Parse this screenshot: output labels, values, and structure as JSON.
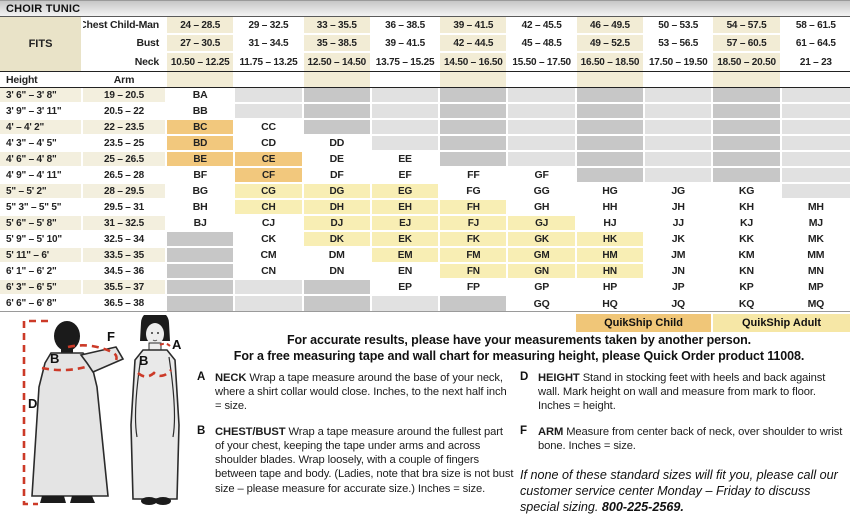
{
  "title": "CHOIR TUNIC",
  "colors": {
    "quikship_child": "#f0c678",
    "quikship_adult": "#f6e7a6",
    "highlight_child_cell": "#f2c87d",
    "highlight_adult_cell": "#f8eeb4",
    "cream_column": "#f2ecd5",
    "cream_row": "#f3efde",
    "empty_dark": "#c7c7c7",
    "empty_light": "#e1e1e1",
    "measure_red": "#cc3a28"
  },
  "table": {
    "fits_label": "FITS",
    "measure_rows": [
      {
        "label": "Chest Child-Man",
        "values": [
          "24 – 28.5",
          "29 – 32.5",
          "33 – 35.5",
          "36 – 38.5",
          "39 – 41.5",
          "42 – 45.5",
          "46 – 49.5",
          "50 – 53.5",
          "54 – 57.5",
          "58 – 61.5"
        ]
      },
      {
        "label": "Bust",
        "values": [
          "27 – 30.5",
          "31 – 34.5",
          "35 – 38.5",
          "39 – 41.5",
          "42 – 44.5",
          "45 – 48.5",
          "49 – 52.5",
          "53 – 56.5",
          "57 – 60.5",
          "61 – 64.5"
        ]
      },
      {
        "label": "Neck",
        "values": [
          "10.50 – 12.25",
          "11.75 – 13.25",
          "12.50 – 14.50",
          "13.75 – 15.25",
          "14.50 – 16.50",
          "15.50 – 17.50",
          "16.50 – 18.50",
          "17.50 – 19.50",
          "18.50 – 20.50",
          "21 – 23"
        ]
      }
    ],
    "height_label": "Height",
    "arm_label": "Arm",
    "rows": [
      {
        "height": "3' 6\" – 3' 8\"",
        "arm": "19 – 20.5",
        "sizes": [
          "BA",
          "",
          "",
          "",
          "",
          "",
          "",
          "",
          "",
          ""
        ]
      },
      {
        "height": "3' 9\" – 3' 11\"",
        "arm": "20.5 – 22",
        "sizes": [
          "BB",
          "",
          "",
          "",
          "",
          "",
          "",
          "",
          "",
          ""
        ]
      },
      {
        "height": "4' – 4' 2\"",
        "arm": "22 – 23.5",
        "sizes": [
          "BC",
          "CC",
          "",
          "",
          "",
          "",
          "",
          "",
          "",
          ""
        ]
      },
      {
        "height": "4' 3\" – 4' 5\"",
        "arm": "23.5 – 25",
        "sizes": [
          "BD",
          "CD",
          "DD",
          "",
          "",
          "",
          "",
          "",
          "",
          ""
        ]
      },
      {
        "height": "4' 6\" – 4' 8\"",
        "arm": "25 – 26.5",
        "sizes": [
          "BE",
          "CE",
          "DE",
          "EE",
          "",
          "",
          "",
          "",
          "",
          ""
        ]
      },
      {
        "height": "4' 9\" – 4' 11\"",
        "arm": "26.5 – 28",
        "sizes": [
          "BF",
          "CF",
          "DF",
          "EF",
          "FF",
          "GF",
          "",
          "",
          "",
          ""
        ]
      },
      {
        "height": "5\" – 5' 2\"",
        "arm": "28 – 29.5",
        "sizes": [
          "BG",
          "CG",
          "DG",
          "EG",
          "FG",
          "GG",
          "HG",
          "JG",
          "KG",
          ""
        ]
      },
      {
        "height": "5\" 3\" – 5\" 5\"",
        "arm": "29.5 – 31",
        "sizes": [
          "BH",
          "CH",
          "DH",
          "EH",
          "FH",
          "GH",
          "HH",
          "JH",
          "KH",
          "MH"
        ]
      },
      {
        "height": "5' 6\" – 5' 8\"",
        "arm": "31 – 32.5",
        "sizes": [
          "BJ",
          "CJ",
          "DJ",
          "EJ",
          "FJ",
          "GJ",
          "HJ",
          "JJ",
          "KJ",
          "MJ"
        ]
      },
      {
        "height": "5' 9\" – 5' 10\"",
        "arm": "32.5 – 34",
        "sizes": [
          "",
          "CK",
          "DK",
          "EK",
          "FK",
          "GK",
          "HK",
          "JK",
          "KK",
          "MK"
        ]
      },
      {
        "height": "5' 11\" – 6'",
        "arm": "33.5 – 35",
        "sizes": [
          "",
          "CM",
          "DM",
          "EM",
          "FM",
          "GM",
          "HM",
          "JM",
          "KM",
          "MM"
        ]
      },
      {
        "height": "6' 1\" – 6' 2\"",
        "arm": "34.5 – 36",
        "sizes": [
          "",
          "CN",
          "DN",
          "EN",
          "FN",
          "GN",
          "HN",
          "JN",
          "KN",
          "MN"
        ]
      },
      {
        "height": "6' 3\" – 6' 5\"",
        "arm": "35.5 – 37",
        "sizes": [
          "",
          "",
          "",
          "EP",
          "FP",
          "GP",
          "HP",
          "JP",
          "KP",
          "MP"
        ]
      },
      {
        "height": "6' 6\" – 6' 8\"",
        "arm": "36.5 – 38",
        "sizes": [
          "",
          "",
          "",
          "",
          "",
          "GQ",
          "HQ",
          "JQ",
          "KQ",
          "MQ"
        ]
      }
    ],
    "quikship_child_sizes": [
      "BC",
      "BD",
      "BE",
      "CE",
      "CF"
    ],
    "quikship_adult_sizes": [
      "CG",
      "CH",
      "DG",
      "DH",
      "DJ",
      "DK",
      "EG",
      "EH",
      "EJ",
      "EK",
      "EM",
      "FH",
      "FJ",
      "FK",
      "FM",
      "FN",
      "GJ",
      "GK",
      "GM",
      "GN",
      "HK",
      "HM",
      "HN"
    ]
  },
  "quikship_legend": {
    "child_label": "QuikShip Child",
    "adult_label": "QuikShip  Adult"
  },
  "intro": {
    "line1": "For accurate results, please have your measurements taken by another person.",
    "line2": "For a free measuring tape and wall chart for measuring height, please Quick Order product 11008."
  },
  "instructions": [
    {
      "letter": "A",
      "term": "NECK",
      "text": "Wrap a tape measure around the base of your neck, where a shirt collar would close. Inches, to the next half inch = size.",
      "column": "left"
    },
    {
      "letter": "B",
      "term": "CHEST/BUST",
      "text": "Wrap a tape measure around the fullest part of your chest, keeping the tape under arms and across shoulder blades. Wrap loosely, with a couple of fingers between tape and body. (Ladies, note that bra size is not bust size – please measure for accurate size.) Inches = size.",
      "column": "left"
    },
    {
      "letter": "D",
      "term": "HEIGHT",
      "text": "Stand in stocking feet with heels and back against wall. Mark height on wall and measure from mark to floor. Inches = height.",
      "column": "right"
    },
    {
      "letter": "F",
      "term": "ARM",
      "text": "Measure from center back of neck, over shoulder to wrist bone. Inches = size.",
      "column": "right"
    }
  ],
  "note": {
    "text": "If none of these standard sizes will fit you, please call our customer service center Monday – Friday to discuss special sizing.",
    "phone": "800-225-2569."
  },
  "figure": {
    "labels": {
      "d": "D",
      "b_back": "B",
      "f": "F",
      "a": "A",
      "b_front": "B"
    }
  }
}
